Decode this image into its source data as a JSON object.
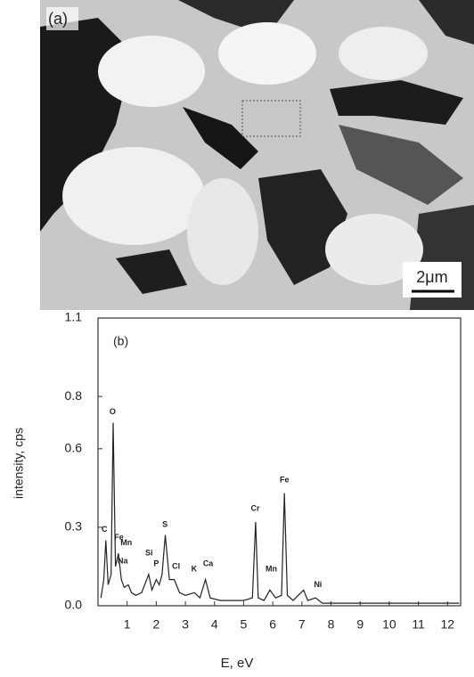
{
  "panel_a": {
    "label": "(a)",
    "scale_bar": "2μm"
  },
  "chart_data": {
    "type": "line",
    "panel_label": "(b)",
    "y_label": "intensity, cps",
    "x_label": "E, eV",
    "x": [
      0.1,
      0.2,
      0.27,
      0.35,
      0.45,
      0.52,
      0.6,
      0.7,
      0.8,
      0.9,
      1.04,
      1.15,
      1.3,
      1.5,
      1.74,
      1.85,
      2.0,
      2.1,
      2.2,
      2.31,
      2.45,
      2.62,
      2.8,
      3.0,
      3.31,
      3.5,
      3.69,
      3.85,
      4.2,
      4.6,
      5.0,
      5.3,
      5.41,
      5.5,
      5.7,
      5.9,
      6.1,
      6.3,
      6.4,
      6.5,
      6.7,
      7.06,
      7.2,
      7.47,
      7.7,
      8.0,
      8.5,
      9,
      9.5,
      10,
      10.5,
      11,
      11.5,
      12,
      12.4
    ],
    "values": [
      0.03,
      0.1,
      0.25,
      0.08,
      0.12,
      0.7,
      0.15,
      0.2,
      0.1,
      0.07,
      0.08,
      0.05,
      0.04,
      0.05,
      0.12,
      0.06,
      0.1,
      0.08,
      0.12,
      0.27,
      0.1,
      0.1,
      0.05,
      0.04,
      0.05,
      0.03,
      0.1,
      0.03,
      0.02,
      0.02,
      0.02,
      0.03,
      0.32,
      0.03,
      0.02,
      0.06,
      0.03,
      0.04,
      0.43,
      0.04,
      0.02,
      0.06,
      0.02,
      0.03,
      0.01,
      0.01,
      0.01,
      0.01,
      0.01,
      0.01,
      0.01,
      0.01,
      0.01,
      0.01,
      0.01
    ],
    "color": "#222222",
    "xlim": [
      0,
      12.45
    ],
    "xticks": [
      1,
      2,
      3,
      4,
      5,
      6,
      7,
      8,
      9,
      10,
      11,
      12
    ],
    "ylim": [
      0,
      1.1
    ],
    "yticks": [
      {
        "value": 0,
        "label": "0.0"
      },
      0.3,
      0.6,
      0.8,
      1.1
    ],
    "grid": false,
    "annotations": [
      {
        "text": "C",
        "x": 0.22,
        "y": 0.29
      },
      {
        "text": "O",
        "x": 0.5,
        "y": 0.74
      },
      {
        "text": "Fe",
        "x": 0.72,
        "y": 0.26
      },
      {
        "text": "Mn",
        "x": 0.97,
        "y": 0.24
      },
      {
        "text": "Na",
        "x": 0.85,
        "y": 0.17
      },
      {
        "text": "Si",
        "x": 1.75,
        "y": 0.2
      },
      {
        "text": "P",
        "x": 2.0,
        "y": 0.16
      },
      {
        "text": "S",
        "x": 2.3,
        "y": 0.31
      },
      {
        "text": "Cl",
        "x": 2.68,
        "y": 0.15
      },
      {
        "text": "K",
        "x": 3.3,
        "y": 0.14
      },
      {
        "text": "Ca",
        "x": 3.78,
        "y": 0.16
      },
      {
        "text": "Cr",
        "x": 5.4,
        "y": 0.37
      },
      {
        "text": "Mn",
        "x": 5.95,
        "y": 0.14
      },
      {
        "text": "Fe",
        "x": 6.4,
        "y": 0.48
      },
      {
        "text": "Ni",
        "x": 7.55,
        "y": 0.08
      }
    ]
  }
}
